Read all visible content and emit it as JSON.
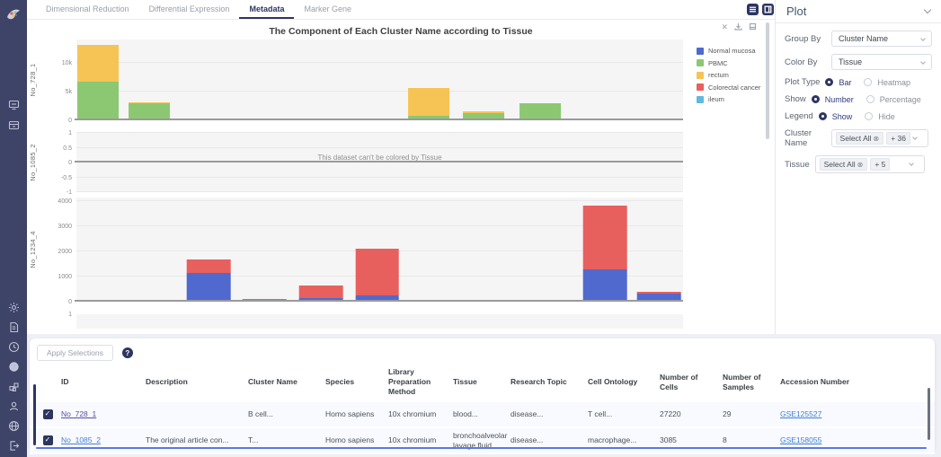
{
  "accents": {
    "navy": "#2d3561",
    "sidebar_bg": "#3e4368",
    "page_bg": "#eef0f5",
    "link": "#3f7fd4",
    "visited_link": "#5a4e9e",
    "table_row_bg": "#f8faff",
    "scroll_line": "#5b79e3"
  },
  "sidebar": {
    "icons": [
      "app-logo",
      "monitor-icon",
      "archive-icon",
      "brightness-icon",
      "document-icon",
      "clock-icon",
      "help-circle-icon",
      "blocks-icon",
      "user-icon",
      "globe-icon",
      "logout-icon"
    ]
  },
  "tabs": {
    "items": [
      {
        "label": "Dimensional Reduction",
        "active": false
      },
      {
        "label": "Differential Expression",
        "active": false
      },
      {
        "label": "Metadata",
        "active": true
      },
      {
        "label": "Marker Gene",
        "active": false
      }
    ]
  },
  "view_toggles": {
    "icons": [
      "rows-layout-icon",
      "split-layout-icon"
    ]
  },
  "chart": {
    "title": "The Component of Each Cluster Name according to Tissue",
    "modebar_icons": [
      "expand-arrows-icon",
      "download-icon",
      "frame-icon"
    ],
    "colors": {
      "Normal mucosa": "#5069cf",
      "PBMC": "#8cc872",
      "rectum": "#f5c454",
      "Colorectal cancer": "#e8605d",
      "ileum": "#62b9dd"
    },
    "legend": {
      "items": [
        {
          "label": "Normal mucosa",
          "color": "#5069cf"
        },
        {
          "label": "PBMC",
          "color": "#8cc872"
        },
        {
          "label": "rectum",
          "color": "#f5c454"
        },
        {
          "label": "Colorectal cancer",
          "color": "#e8605d"
        },
        {
          "label": "ileum",
          "color": "#62b9dd"
        }
      ]
    }
  },
  "chart_data": [
    {
      "panel_label": "No_728_1",
      "type": "bar",
      "ylim": [
        0,
        14000
      ],
      "grid": true,
      "legend_position": "right",
      "yticks": [
        {
          "v": 10000,
          "t": "10k"
        },
        {
          "v": 5000,
          "t": "5k"
        },
        {
          "v": 0,
          "t": "0"
        }
      ],
      "bar_width_pct": 6.8,
      "bars": [
        {
          "x_pct": 3.5,
          "segments": [
            {
              "name": "PBMC",
              "value": 6700
            },
            {
              "name": "rectum",
              "value": 6400
            }
          ]
        },
        {
          "x_pct": 12.0,
          "segments": [
            {
              "name": "PBMC",
              "value": 2900
            },
            {
              "name": "rectum",
              "value": 250
            }
          ]
        },
        {
          "x_pct": 58.1,
          "segments": [
            {
              "name": "PBMC",
              "value": 800
            },
            {
              "name": "rectum",
              "value": 4800
            }
          ]
        },
        {
          "x_pct": 67.1,
          "segments": [
            {
              "name": "PBMC",
              "value": 1300
            },
            {
              "name": "rectum",
              "value": 260
            }
          ]
        },
        {
          "x_pct": 76.4,
          "segments": [
            {
              "name": "PBMC",
              "value": 3000
            }
          ]
        }
      ]
    },
    {
      "panel_label": "No_1085_2",
      "type": "empty",
      "ylim": [
        -1,
        1
      ],
      "yticks": [
        {
          "v": 1,
          "t": "1"
        },
        {
          "v": 0.5,
          "t": "0.5"
        },
        {
          "v": 0,
          "t": "0"
        },
        {
          "v": -0.5,
          "t": "-0.5"
        },
        {
          "v": -1,
          "t": "-1"
        }
      ],
      "message": "This dataset can't be colored by Tissue",
      "bars": []
    },
    {
      "panel_label": "No_1234_4",
      "type": "bar",
      "ylim": [
        0,
        4150
      ],
      "grid": true,
      "yticks": [
        {
          "v": 4000,
          "t": "4000"
        },
        {
          "v": 3000,
          "t": "3000"
        },
        {
          "v": 2000,
          "t": "2000"
        },
        {
          "v": 1000,
          "t": "1000"
        },
        {
          "v": 0,
          "t": "0"
        }
      ],
      "bar_width_pct": 7.2,
      "bars": [
        {
          "x_pct": 21.8,
          "segments": [
            {
              "name": "Normal mucosa",
              "value": 1150
            },
            {
              "name": "Colorectal cancer",
              "value": 550
            }
          ]
        },
        {
          "x_pct": 31.0,
          "segments": [
            {
              "name": "Normal mucosa",
              "value": 60
            },
            {
              "name": "Colorectal cancer",
              "value": 50
            }
          ]
        },
        {
          "x_pct": 40.3,
          "segments": [
            {
              "name": "Normal mucosa",
              "value": 140
            },
            {
              "name": "Colorectal cancer",
              "value": 520
            }
          ]
        },
        {
          "x_pct": 49.6,
          "segments": [
            {
              "name": "Normal mucosa",
              "value": 250
            },
            {
              "name": "Colorectal cancer",
              "value": 1850
            }
          ]
        },
        {
          "x_pct": 87.1,
          "segments": [
            {
              "name": "Normal mucosa",
              "value": 1300
            },
            {
              "name": "Colorectal cancer",
              "value": 2530
            }
          ]
        },
        {
          "x_pct": 96.0,
          "segments": [
            {
              "name": "Normal mucosa",
              "value": 310
            },
            {
              "name": "Colorectal cancer",
              "value": 80
            }
          ]
        }
      ]
    },
    {
      "panel_label": "",
      "type": "partial",
      "ylim": [
        -1,
        1
      ],
      "yticks": [
        {
          "v": 1,
          "t": "1"
        }
      ],
      "bars": []
    }
  ],
  "plot_panel": {
    "title": "Plot",
    "group_by": {
      "label": "Group By",
      "value": "Cluster Name"
    },
    "color_by": {
      "label": "Color By",
      "value": "Tissue"
    },
    "plot_type": {
      "label": "Plot Type",
      "options": [
        {
          "label": "Bar",
          "selected": true
        },
        {
          "label": "Heatmap",
          "selected": false
        }
      ]
    },
    "show": {
      "label": "Show",
      "options": [
        {
          "label": "Number",
          "selected": true
        },
        {
          "label": "Percentage",
          "selected": false
        }
      ]
    },
    "legend": {
      "label": "Legend",
      "options": [
        {
          "label": "Show",
          "selected": true
        },
        {
          "label": "Hide",
          "selected": false
        }
      ]
    },
    "cluster_name": {
      "label": "Cluster Name",
      "tags": [
        "Select All",
        "+ 36"
      ]
    },
    "tissue": {
      "label": "Tissue",
      "tags": [
        "Select All",
        "+ 5"
      ]
    }
  },
  "selection_bar": {
    "apply_button": "Apply Selections",
    "help_icon": "?"
  },
  "table": {
    "columns": [
      "ID",
      "Description",
      "Cluster Name",
      "Species",
      "Library Preparation Method",
      "Tissue",
      "Research Topic",
      "Cell Ontology",
      "Number of Cells",
      "Number of Samples",
      "Accession Number"
    ],
    "rows": [
      {
        "checked": true,
        "id": "No_728_1",
        "id_visited": true,
        "cells": [
          "",
          "B cell...",
          "Homo sapiens",
          "10x chromium",
          "blood...",
          "disease...",
          "T cell...",
          "27220",
          "29"
        ],
        "accession": "GSE125527"
      },
      {
        "checked": true,
        "id": "No_1085_2",
        "id_visited": false,
        "cells": [
          "The original article con...",
          "T...",
          "Homo sapiens",
          "10x chromium",
          "bronchoalveolar lavage fluid...",
          "disease...",
          "macrophage...",
          "3085",
          "8"
        ],
        "accession": "GSE158055"
      }
    ]
  }
}
